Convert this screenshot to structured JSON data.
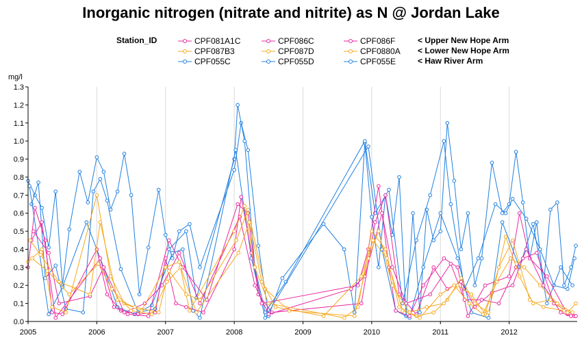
{
  "chart_data": {
    "type": "line",
    "title": "Inorganic nitrogen (nitrate and nitrite) as N @ Jordan Lake",
    "ylabel": "mg/l",
    "ylim": [
      0,
      1.3
    ],
    "xlim": [
      2005.0,
      2012.99
    ],
    "yticks": [
      "0.0",
      "0.1",
      "0.2",
      "0.3",
      "0.4",
      "0.5",
      "0.6",
      "0.7",
      "0.8",
      "0.9",
      "1.0",
      "1.1",
      "1.2",
      "1.3"
    ],
    "xticks": [
      "2005",
      "2006",
      "2007",
      "2008",
      "2009",
      "2010",
      "2011",
      "2012"
    ],
    "vertical_gridlines": true,
    "legend": {
      "title": "Station_ID",
      "groups": [
        {
          "label": "< Upper New Hope Arm",
          "color": "#e8279e",
          "stations": [
            "CPF081A1C",
            "CPF086C",
            "CPF086F"
          ]
        },
        {
          "label": "< Lower New Hope Arm",
          "color": "#f5a71e",
          "stations": [
            "CPF087B3",
            "CPF087D",
            "CPF0880A"
          ]
        },
        {
          "label": "< Haw River Arm",
          "color": "#1e7fe0",
          "stations": [
            "CPF055C",
            "CPF055D",
            "CPF055E"
          ]
        }
      ]
    },
    "series": [
      {
        "name": "CPF055C",
        "group": "Haw River Arm",
        "color": "#1e7fe0",
        "x": [
          2005.0,
          2005.1,
          2005.2,
          2005.3,
          2005.4,
          2005.5,
          2005.6,
          2005.75,
          2005.87,
          2006.0,
          2006.1,
          2006.2,
          2006.3,
          2006.4,
          2006.5,
          2006.62,
          2006.75,
          2006.9,
          2007.0,
          2007.1,
          2007.2,
          2007.35,
          2007.5,
          2008.0,
          2008.1,
          2008.2,
          2008.35,
          2008.5,
          2008.7,
          2009.3,
          2009.6,
          2009.75,
          2009.9,
          2010.0,
          2010.1,
          2010.2,
          2010.3,
          2010.4,
          2010.5,
          2010.6,
          2010.7,
          2010.8,
          2010.9,
          2011.0,
          2011.1,
          2011.2,
          2011.3,
          2011.4,
          2011.5,
          2011.6,
          2011.75,
          2011.9,
          2012.0,
          2012.1,
          2012.2,
          2012.3,
          2012.4,
          2012.5,
          2012.6,
          2012.7,
          2012.8,
          2012.9,
          2012.97
        ],
        "y": [
          0.78,
          0.7,
          0.63,
          0.41,
          0.72,
          0.2,
          0.51,
          0.83,
          0.66,
          0.91,
          0.83,
          0.62,
          0.72,
          0.93,
          0.7,
          0.15,
          0.41,
          0.73,
          0.48,
          0.35,
          0.5,
          0.54,
          0.3,
          0.84,
          1.1,
          0.95,
          0.42,
          0.03,
          0.24,
          0.54,
          0.4,
          0.05,
          0.99,
          0.58,
          0.3,
          0.7,
          0.48,
          0.8,
          0.03,
          0.6,
          0.05,
          0.62,
          0.45,
          0.5,
          1.1,
          0.78,
          0.4,
          0.6,
          0.2,
          0.35,
          0.88,
          0.6,
          0.65,
          0.94,
          0.66,
          0.35,
          0.55,
          0.2,
          0.62,
          0.66,
          0.2,
          0.3,
          0.42
        ]
      },
      {
        "name": "CPF055D",
        "group": "Haw River Arm",
        "color": "#1e7fe0",
        "x": [
          2005.05,
          2005.15,
          2005.25,
          2005.4,
          2005.55,
          2005.8,
          2005.95,
          2006.05,
          2006.15,
          2006.35,
          2006.6,
          2006.85,
          2007.05,
          2007.3,
          2007.45,
          2008.0,
          2008.05,
          2008.15,
          2008.3,
          2008.45,
          2008.75,
          2009.9,
          2010.05,
          2010.25,
          2010.45,
          2010.65,
          2010.85,
          2011.05,
          2011.15,
          2011.35,
          2011.55,
          2011.8,
          2011.95,
          2012.05,
          2012.25,
          2012.45,
          2012.65,
          2012.85,
          2012.95
        ],
        "y": [
          0.65,
          0.77,
          0.24,
          0.31,
          0.07,
          0.05,
          0.72,
          0.79,
          0.67,
          0.29,
          0.05,
          0.07,
          0.4,
          0.5,
          0.13,
          0.9,
          1.2,
          1.0,
          0.3,
          0.05,
          0.22,
          1.0,
          0.6,
          0.73,
          0.1,
          0.45,
          0.7,
          1.0,
          0.65,
          0.18,
          0.35,
          0.65,
          0.6,
          0.68,
          0.57,
          0.4,
          0.2,
          0.18,
          0.35
        ]
      },
      {
        "name": "CPF055E",
        "group": "Haw River Arm",
        "color": "#1e7fe0",
        "x": [
          2005.02,
          2005.3,
          2005.5,
          2005.85,
          2006.1,
          2006.3,
          2006.55,
          2006.8,
          2007.1,
          2007.25,
          2007.4,
          2007.5,
          2008.02,
          2008.25,
          2008.45,
          2009.95,
          2010.15,
          2010.35,
          2010.55,
          2010.75,
          2011.0,
          2011.25,
          2011.45,
          2011.7,
          2011.9,
          2012.15,
          2012.35,
          2012.55,
          2012.75,
          2012.92
        ],
        "y": [
          0.75,
          0.04,
          0.19,
          0.55,
          0.3,
          0.08,
          0.04,
          0.09,
          0.38,
          0.4,
          0.06,
          0.02,
          0.95,
          0.35,
          0.02,
          0.97,
          0.4,
          0.06,
          0.02,
          0.3,
          0.6,
          0.35,
          0.05,
          0.02,
          0.55,
          0.3,
          0.54,
          0.1,
          0.3,
          0.2
        ]
      },
      {
        "name": "CPF081A1C",
        "group": "Upper New Hope Arm",
        "color": "#e8279e",
        "x": [
          2005.0,
          2005.1,
          2005.25,
          2005.35,
          2005.5,
          2006.0,
          2006.15,
          2006.35,
          2006.6,
          2006.85,
          2007.0,
          2007.15,
          2007.3,
          2007.55,
          2008.0,
          2008.1,
          2008.25,
          2008.4,
          2009.8,
          2009.95,
          2010.1,
          2010.25,
          2010.35,
          2010.55,
          2010.75,
          2011.05,
          2011.25,
          2011.4,
          2011.65,
          2012.0,
          2012.15,
          2012.3,
          2012.55,
          2012.85,
          2012.95
        ],
        "y": [
          0.3,
          0.63,
          0.45,
          0.05,
          0.04,
          0.4,
          0.15,
          0.06,
          0.04,
          0.05,
          0.35,
          0.1,
          0.08,
          0.05,
          0.4,
          0.69,
          0.38,
          0.1,
          0.2,
          0.4,
          0.75,
          0.3,
          0.06,
          0.03,
          0.2,
          0.35,
          0.3,
          0.03,
          0.2,
          0.25,
          0.6,
          0.35,
          0.25,
          0.04,
          0.03
        ]
      },
      {
        "name": "CPF086C",
        "group": "Upper New Hope Arm",
        "color": "#e8279e",
        "x": [
          2005.05,
          2005.2,
          2005.4,
          2006.05,
          2006.25,
          2006.45,
          2006.75,
          2007.05,
          2007.25,
          2007.6,
          2008.05,
          2008.2,
          2008.35,
          2008.55,
          2009.85,
          2010.05,
          2010.2,
          2010.4,
          2010.65,
          2010.9,
          2011.1,
          2011.3,
          2011.5,
          2011.75,
          2012.05,
          2012.25,
          2012.5,
          2012.75,
          2012.9
        ],
        "y": [
          0.45,
          0.55,
          0.02,
          0.35,
          0.08,
          0.04,
          0.03,
          0.45,
          0.3,
          0.12,
          0.65,
          0.6,
          0.15,
          0.05,
          0.1,
          0.55,
          0.7,
          0.15,
          0.04,
          0.3,
          0.18,
          0.22,
          0.08,
          0.16,
          0.2,
          0.4,
          0.2,
          0.05,
          0.03
        ]
      },
      {
        "name": "CPF086F",
        "group": "Upper New Hope Arm",
        "color": "#e8279e",
        "x": [
          2005.08,
          2005.3,
          2005.45,
          2005.9,
          2006.1,
          2006.4,
          2006.7,
          2006.95,
          2007.2,
          2007.5,
          2008.08,
          2008.3,
          2008.5,
          2009.7,
          2009.9,
          2010.15,
          2010.3,
          2010.5,
          2010.85,
          2011.15,
          2011.35,
          2011.6,
          2011.85,
          2012.1,
          2012.2,
          2012.4,
          2012.65,
          2012.97
        ],
        "y": [
          0.5,
          0.38,
          0.1,
          0.14,
          0.3,
          0.05,
          0.1,
          0.2,
          0.38,
          0.1,
          0.58,
          0.2,
          0.04,
          0.18,
          0.25,
          0.6,
          0.3,
          0.1,
          0.15,
          0.32,
          0.12,
          0.12,
          0.1,
          0.3,
          0.35,
          0.38,
          0.1,
          0.03
        ]
      },
      {
        "name": "CPF087B3",
        "group": "Lower New Hope Arm",
        "color": "#f5a71e",
        "x": [
          2005.0,
          2005.2,
          2005.35,
          2005.55,
          2006.0,
          2006.2,
          2006.4,
          2006.65,
          2007.0,
          2007.2,
          2007.35,
          2008.0,
          2008.15,
          2008.3,
          2008.5,
          2009.6,
          2009.8,
          2010.0,
          2010.2,
          2010.4,
          2010.65,
          2010.9,
          2011.1,
          2011.3,
          2011.5,
          2011.7,
          2011.95,
          2012.15,
          2012.35,
          2012.6,
          2012.85,
          2012.97
        ],
        "y": [
          0.33,
          0.4,
          0.08,
          0.05,
          0.7,
          0.25,
          0.1,
          0.06,
          0.3,
          0.33,
          0.06,
          0.5,
          0.64,
          0.3,
          0.1,
          0.02,
          0.08,
          0.5,
          0.4,
          0.08,
          0.03,
          0.05,
          0.12,
          0.24,
          0.1,
          0.05,
          0.47,
          0.25,
          0.1,
          0.12,
          0.05,
          0.1
        ]
      },
      {
        "name": "CPF087D",
        "group": "Lower New Hope Arm",
        "color": "#f5a71e",
        "x": [
          2005.03,
          2005.18,
          2005.45,
          2005.9,
          2006.05,
          2006.3,
          2006.55,
          2006.9,
          2007.05,
          2007.3,
          2007.5,
          2008.03,
          2008.2,
          2008.45,
          2008.8,
          2009.75,
          2009.95,
          2010.1,
          2010.3,
          2010.55,
          2010.8,
          2011.05,
          2011.25,
          2011.45,
          2011.65,
          2011.85,
          2012.05,
          2012.3,
          2012.5,
          2012.8
        ],
        "y": [
          0.45,
          0.37,
          0.22,
          0.15,
          0.55,
          0.12,
          0.08,
          0.05,
          0.28,
          0.15,
          0.12,
          0.45,
          0.62,
          0.18,
          0.06,
          0.03,
          0.35,
          0.5,
          0.2,
          0.05,
          0.08,
          0.1,
          0.2,
          0.15,
          0.04,
          0.3,
          0.45,
          0.12,
          0.08,
          0.06
        ]
      },
      {
        "name": "CPF0880A",
        "group": "Lower New Hope Arm",
        "color": "#f5a71e",
        "x": [
          2005.06,
          2005.28,
          2005.6,
          2006.02,
          2006.22,
          2006.5,
          2006.8,
          2007.02,
          2007.22,
          2007.45,
          2008.06,
          2008.22,
          2008.4,
          2008.6,
          2009.3,
          2009.85,
          2010.02,
          2010.22,
          2010.45,
          2010.7,
          2011.0,
          2011.2,
          2011.42,
          2011.62,
          2011.82,
          2012.02,
          2012.22,
          2012.45,
          2012.7,
          2012.92
        ],
        "y": [
          0.35,
          0.28,
          0.15,
          0.32,
          0.18,
          0.06,
          0.04,
          0.22,
          0.3,
          0.05,
          0.38,
          0.55,
          0.22,
          0.08,
          0.03,
          0.25,
          0.45,
          0.35,
          0.06,
          0.02,
          0.15,
          0.2,
          0.1,
          0.04,
          0.22,
          0.35,
          0.3,
          0.2,
          0.1,
          0.05
        ]
      }
    ]
  }
}
